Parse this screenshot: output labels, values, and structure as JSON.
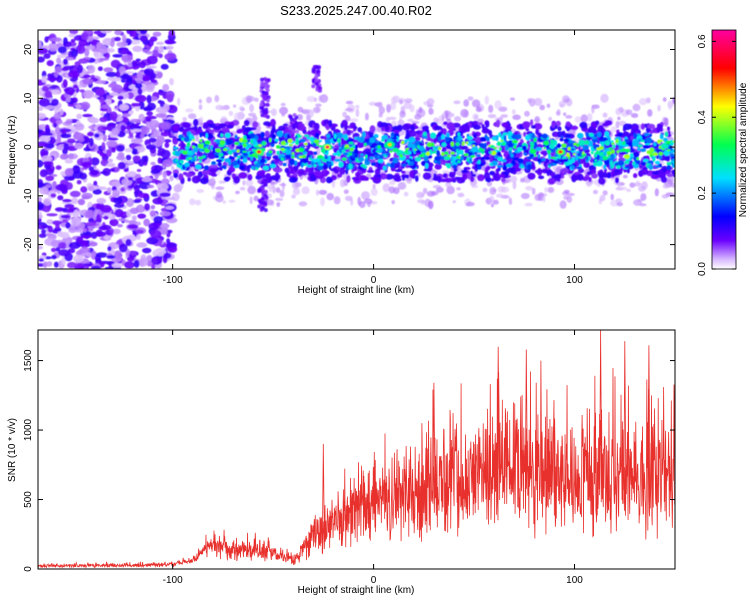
{
  "title": "S233.2025.247.00.40.R02",
  "chart_data": [
    {
      "type": "heatmap",
      "xlabel": "Height of straight line (km)",
      "ylabel": "Frequency (Hz)",
      "xlim": [
        -167,
        150
      ],
      "ylim": [
        -25,
        24
      ],
      "xticks": [
        -100,
        0,
        100
      ],
      "xtick_labels": [
        "-100",
        "0",
        "100"
      ],
      "yticks": [
        -20,
        -10,
        0,
        10,
        20
      ],
      "ytick_labels": [
        "-20",
        "-10",
        "0",
        "10",
        "20"
      ],
      "colorbar": {
        "label": "Normalized spectral amplitude",
        "range": [
          0.0,
          0.63
        ],
        "ticks": [
          0.0,
          0.2,
          0.4,
          0.6
        ],
        "tick_labels": [
          "0.0",
          "0.2",
          "0.4",
          "0.6"
        ],
        "colors": [
          "#ffffff",
          "#6a00ff",
          "#0000ff",
          "#00e0ff",
          "#00ff50",
          "#ffff00",
          "#ff0000",
          "#ff00a0"
        ]
      },
      "regions": [
        {
          "x_range": [
            -167,
            -100
          ],
          "freq_range": [
            -25,
            24
          ],
          "level": "noise, ~0.05-0.1"
        },
        {
          "x_range": [
            -100,
            150
          ],
          "freq_range": [
            -6,
            4
          ],
          "level": "signal band centered near 0 Hz, up to ~0.6"
        }
      ],
      "peaks": [
        {
          "x": -57,
          "y": -1,
          "value": 0.55
        },
        {
          "x": -23,
          "y": 0,
          "value": 0.6
        },
        {
          "x": 8,
          "y": 0.5,
          "value": 0.45
        },
        {
          "x": 93,
          "y": -1,
          "value": 0.55
        }
      ]
    },
    {
      "type": "line",
      "xlabel": "Height of straight line (km)",
      "ylabel": "SNR (10 * v/v)",
      "xlim": [
        -167,
        150
      ],
      "ylim": [
        0,
        1720
      ],
      "xticks": [
        -100,
        0,
        100
      ],
      "xtick_labels": [
        "-100",
        "0",
        "100"
      ],
      "yticks": [
        0,
        500,
        1000,
        1500
      ],
      "ytick_labels": [
        "0",
        "500",
        "1000",
        "1500"
      ],
      "color": "#e8302c",
      "series": [
        {
          "x": [
            -167,
            -150,
            -120,
            -100,
            -90,
            -82,
            -75,
            -68,
            -60,
            -52,
            -45,
            -40,
            -35,
            -30,
            -25,
            -20,
            -15,
            -10,
            -5,
            0,
            10,
            20,
            30,
            40,
            50,
            60,
            70,
            80,
            90,
            100,
            110,
            120,
            130,
            140,
            150
          ],
          "values": [
            20,
            25,
            25,
            35,
            60,
            160,
            150,
            120,
            140,
            120,
            90,
            70,
            140,
            240,
            260,
            300,
            350,
            380,
            420,
            460,
            520,
            560,
            620,
            680,
            680,
            720,
            720,
            690,
            700,
            660,
            700,
            640,
            600,
            640,
            650
          ],
          "spread": [
            15,
            15,
            15,
            20,
            30,
            80,
            100,
            80,
            90,
            80,
            60,
            50,
            110,
            200,
            220,
            250,
            260,
            280,
            300,
            320,
            360,
            400,
            440,
            480,
            500,
            520,
            540,
            520,
            520,
            500,
            520,
            500,
            480,
            500,
            520
          ]
        }
      ],
      "notable_spikes": [
        {
          "x": -25,
          "value": 900
        },
        {
          "x": 30,
          "value": 1340
        },
        {
          "x": 62,
          "value": 1600
        },
        {
          "x": 76,
          "value": 1580
        },
        {
          "x": 113,
          "value": 1720
        },
        {
          "x": 125,
          "value": 1640
        },
        {
          "x": 137,
          "value": 1610
        }
      ]
    }
  ]
}
